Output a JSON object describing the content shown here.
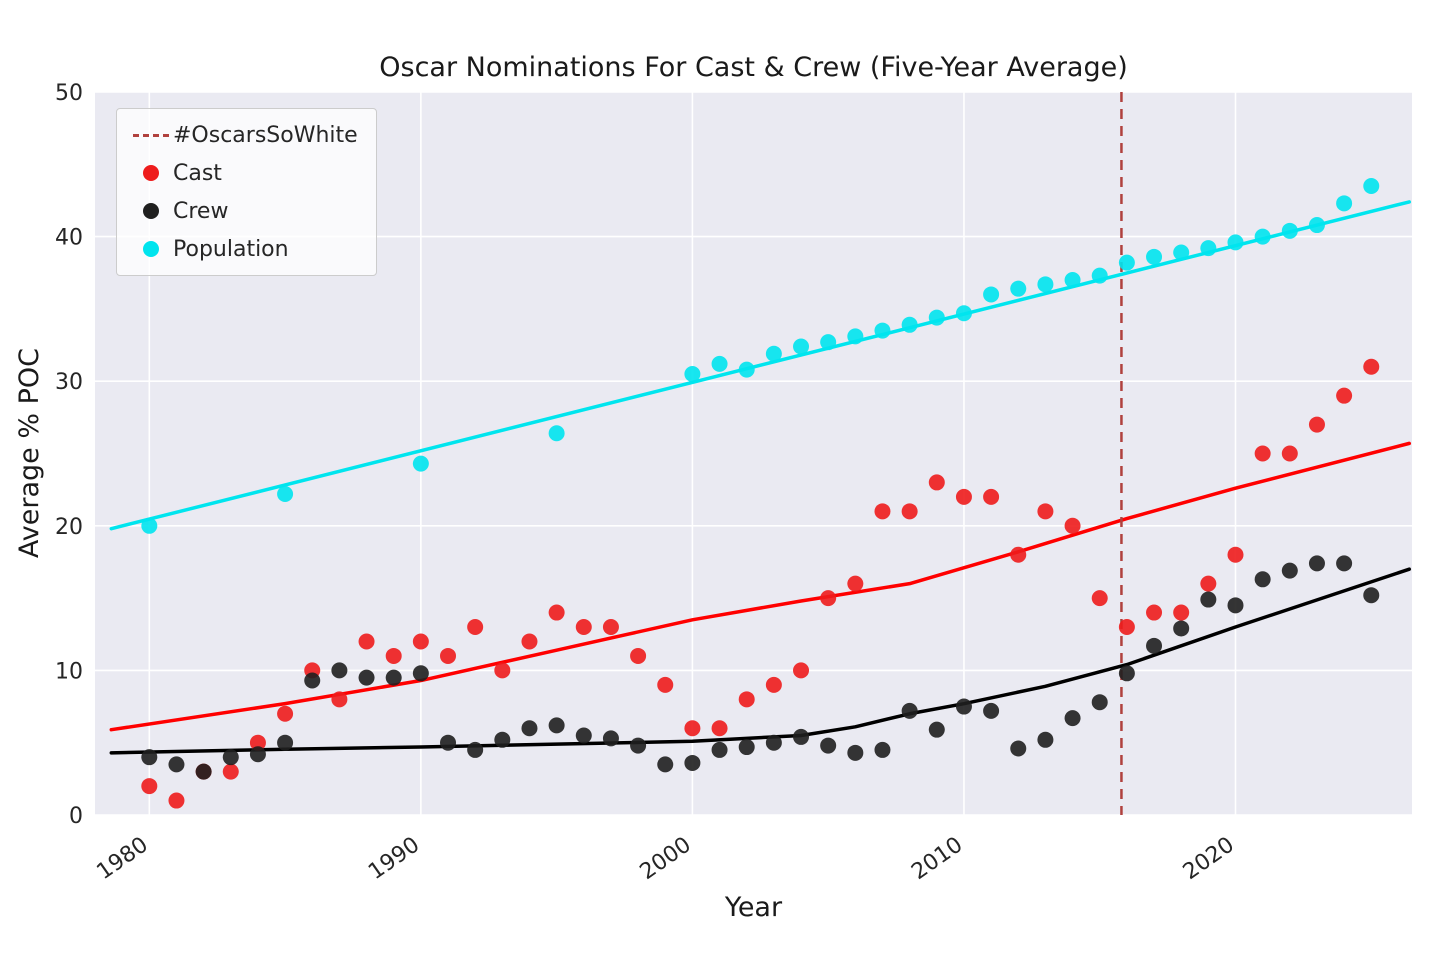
{
  "colors": {
    "plot_bg": "#eaeaf2",
    "grid": "#ffffff",
    "tick_text": "#262626",
    "title_text": "#1a1a1a",
    "cast": "#ee1c1c",
    "cast_line": "#ff0000",
    "crew": "#1f1f1f",
    "crew_line": "#000000",
    "population": "#00e4ee",
    "population_line": "#00e5ee",
    "annotation": "#b0413e"
  },
  "chart_data": {
    "type": "scatter",
    "title": "Oscar Nominations For Cast & Crew (Five-Year Average)",
    "xlabel": "Year",
    "ylabel": "Average % POC",
    "xlim": [
      1978,
      2026.5
    ],
    "ylim": [
      0,
      50
    ],
    "x_ticks": [
      1980,
      1990,
      2000,
      2010,
      2020
    ],
    "y_ticks": [
      0,
      10,
      20,
      30,
      40,
      50
    ],
    "grid": true,
    "legend_position": "upper-left",
    "annotation_line": {
      "label": "#OscarsSoWhite",
      "x": 2015.8,
      "color": "#b0413e",
      "style": "dashed"
    },
    "series": [
      {
        "name": "Cast",
        "color": "#ee1c1c",
        "x": [
          1980,
          1981,
          1982,
          1983,
          1984,
          1985,
          1986,
          1987,
          1988,
          1989,
          1990,
          1991,
          1992,
          1993,
          1994,
          1995,
          1996,
          1997,
          1998,
          1999,
          2000,
          2001,
          2002,
          2003,
          2004,
          2005,
          2006,
          2007,
          2008,
          2009,
          2010,
          2011,
          2012,
          2013,
          2014,
          2015,
          2016,
          2017,
          2018,
          2019,
          2020,
          2021,
          2022,
          2023,
          2024,
          2025
        ],
        "y": [
          2,
          1,
          3,
          3,
          5,
          7,
          10,
          8,
          12,
          11,
          12,
          11,
          13,
          10,
          12,
          14,
          13,
          13,
          11,
          9,
          6,
          6,
          8,
          9,
          10,
          15,
          16,
          21,
          21,
          23,
          22,
          22,
          18,
          21,
          20,
          15,
          13,
          14,
          14,
          16,
          18,
          25,
          25,
          27,
          29,
          31
        ]
      },
      {
        "name": "Crew",
        "color": "#1f1f1f",
        "x": [
          1980,
          1981,
          1982,
          1983,
          1984,
          1985,
          1986,
          1987,
          1988,
          1989,
          1990,
          1991,
          1992,
          1993,
          1994,
          1995,
          1996,
          1997,
          1998,
          1999,
          2000,
          2001,
          2002,
          2003,
          2004,
          2005,
          2006,
          2007,
          2008,
          2009,
          2010,
          2011,
          2012,
          2013,
          2014,
          2015,
          2016,
          2017,
          2018,
          2019,
          2020,
          2021,
          2022,
          2023,
          2024,
          2025
        ],
        "y": [
          4,
          3.5,
          3,
          4,
          4.2,
          5,
          9.3,
          10,
          9.5,
          9.5,
          9.8,
          5,
          4.5,
          5.2,
          6,
          6.2,
          5.5,
          5.3,
          4.8,
          3.5,
          3.6,
          4.5,
          4.7,
          5,
          5.4,
          4.8,
          4.3,
          4.5,
          7.2,
          5.9,
          7.5,
          7.2,
          4.6,
          5.2,
          6.7,
          7.8,
          9.8,
          11.7,
          12.9,
          14.9,
          14.5,
          16.3,
          16.9,
          17.4,
          17.4,
          15.2
        ]
      },
      {
        "name": "Population",
        "color": "#00e4ee",
        "x": [
          1980,
          1985,
          1990,
          1995,
          2000,
          2001,
          2002,
          2003,
          2004,
          2005,
          2006,
          2007,
          2008,
          2009,
          2010,
          2011,
          2012,
          2013,
          2014,
          2015,
          2016,
          2017,
          2018,
          2019,
          2020,
          2021,
          2022,
          2023,
          2024,
          2025
        ],
        "y": [
          20,
          22.2,
          24.3,
          26.4,
          30.5,
          31.2,
          30.8,
          31.9,
          32.4,
          32.7,
          33.1,
          33.5,
          33.9,
          34.4,
          34.7,
          36.0,
          36.4,
          36.7,
          37.0,
          37.3,
          38.2,
          38.6,
          38.9,
          39.2,
          39.6,
          40.0,
          40.4,
          40.8,
          42.3,
          43.5
        ]
      }
    ],
    "trend_lines": [
      {
        "name": "cast-trend-line",
        "color": "#ff0000",
        "x": [
          1978.6,
          1985,
          1990,
          1995,
          2000,
          2004,
          2008,
          2012,
          2016,
          2020,
          2026.4
        ],
        "y": [
          5.9,
          7.7,
          9.3,
          11.4,
          13.5,
          14.8,
          16.0,
          18.2,
          20.5,
          22.6,
          25.7
        ]
      },
      {
        "name": "crew-trend-line",
        "color": "#000000",
        "x": [
          1978.6,
          1985,
          1990,
          1995,
          2000,
          2004,
          2006,
          2008,
          2010,
          2013,
          2016,
          2020,
          2026.4
        ],
        "y": [
          4.3,
          4.55,
          4.7,
          4.9,
          5.1,
          5.5,
          6.1,
          7.0,
          7.7,
          8.9,
          10.4,
          13.0,
          17.0
        ]
      },
      {
        "name": "population-trend-line",
        "color": "#00e5ee",
        "x": [
          1978.6,
          2026.4
        ],
        "y": [
          19.8,
          42.4
        ]
      }
    ],
    "legend": [
      {
        "label": "#OscarsSoWhite",
        "marker": "dashed-line",
        "color": "#b0413e"
      },
      {
        "label": "Cast",
        "marker": "dot",
        "color": "#ee1c1c"
      },
      {
        "label": "Crew",
        "marker": "dot",
        "color": "#1f1f1f"
      },
      {
        "label": "Population",
        "marker": "dot",
        "color": "#00e4ee"
      }
    ]
  }
}
